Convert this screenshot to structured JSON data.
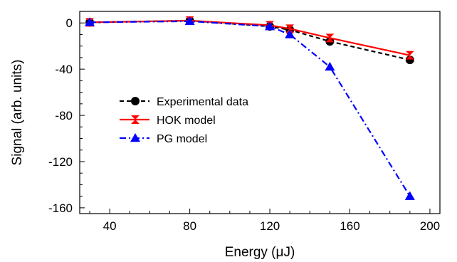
{
  "chart_data": {
    "type": "line",
    "xlabel": "Energy (μJ)",
    "ylabel": "Signal (arb. units)",
    "xlim": [
      25,
      205
    ],
    "ylim": [
      -165,
      10
    ],
    "x_ticks": [
      40,
      80,
      120,
      160,
      200
    ],
    "y_ticks": [
      0,
      -40,
      -80,
      -120,
      -160
    ],
    "x_minor_step": 10,
    "y_minor_step": 10,
    "grid": false,
    "legend_position": "center-left",
    "series": [
      {
        "name": "Experimental data",
        "color": "#000000",
        "marker": "circle",
        "line_style": "dashed",
        "x": [
          30,
          80,
          120,
          130,
          150,
          190
        ],
        "y": [
          0.5,
          2,
          -3,
          -6,
          -16,
          -32
        ]
      },
      {
        "name": "HOK model",
        "color": "#ff0000",
        "marker": "hourglass",
        "line_style": "solid",
        "x": [
          30,
          80,
          120,
          130,
          150,
          190
        ],
        "y": [
          0.5,
          2,
          -2,
          -5,
          -13,
          -28
        ]
      },
      {
        "name": "PG model",
        "color": "#0000ff",
        "marker": "triangle",
        "line_style": "dashdot",
        "x": [
          30,
          80,
          120,
          130,
          150,
          190
        ],
        "y": [
          0.5,
          1.5,
          -3,
          -10,
          -38,
          -150
        ]
      }
    ]
  }
}
